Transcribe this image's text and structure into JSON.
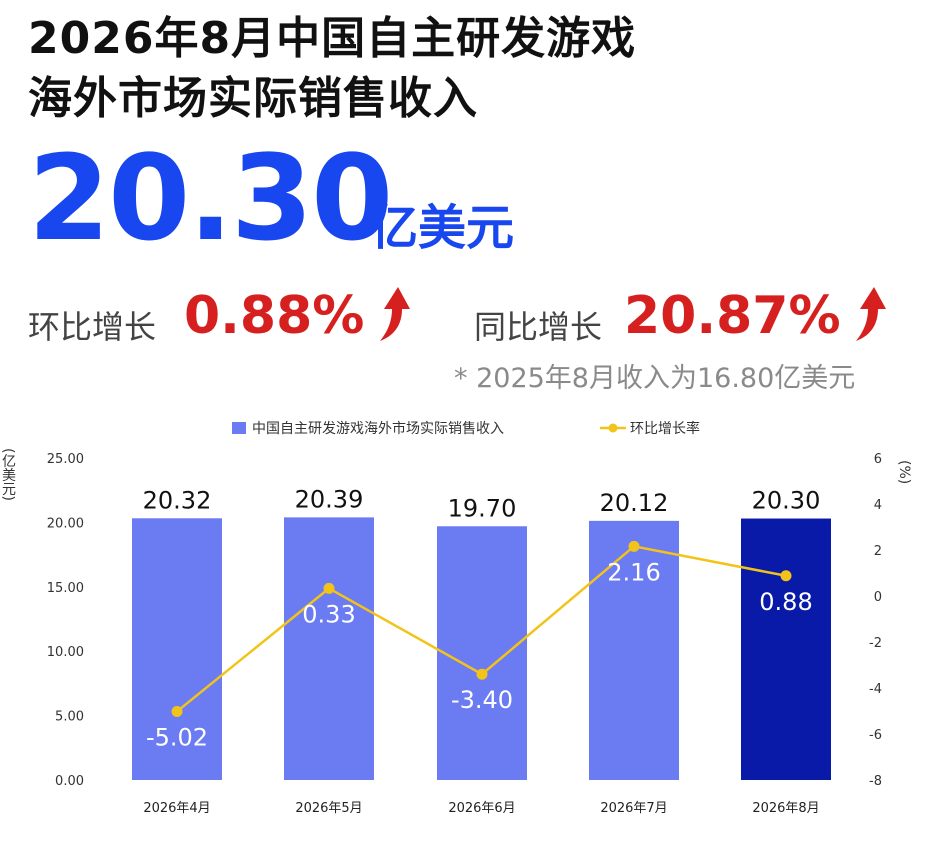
{
  "header": {
    "title_line1": "2026年8月中国自主研发游戏",
    "title_line2": "海外市场实际销售收入",
    "value": "20.30",
    "unit": "亿美元"
  },
  "stats": {
    "mom_label": "环比增长",
    "mom_value": "0.88%",
    "yoy_label": "同比增长",
    "yoy_value": "20.87%",
    "note": "* 2025年8月收入为16.80亿美元"
  },
  "colors": {
    "bar": "#6b7bf2",
    "bar_highlight": "#0a1aa8",
    "line": "#f2c318",
    "accent_blue": "#1846ef",
    "accent_red": "#d62020"
  },
  "chart_data": {
    "type": "bar",
    "categories": [
      "2026年4月",
      "2026年5月",
      "2026年6月",
      "2026年7月",
      "2026年8月"
    ],
    "series": [
      {
        "name": "中国自主研发游戏海外市场实际销售收入",
        "type": "bar",
        "axis": "left",
        "values": [
          20.32,
          20.39,
          19.7,
          20.12,
          20.3
        ],
        "labels": [
          "20.32",
          "20.39",
          "19.70",
          "20.12",
          "20.30"
        ]
      },
      {
        "name": "环比增长率",
        "type": "line",
        "axis": "right",
        "values": [
          -5.02,
          0.33,
          -3.4,
          2.16,
          0.88
        ],
        "labels": [
          "-5.02",
          "0.33",
          "-3.40",
          "2.16",
          "0.88"
        ]
      }
    ],
    "y_left": {
      "label": "(亿美元)",
      "range": [
        0,
        25
      ],
      "ticks": [
        "0.00",
        "5.00",
        "10.00",
        "15.00",
        "20.00",
        "25.00"
      ]
    },
    "y_right": {
      "label": "(%)",
      "range": [
        -8,
        6
      ],
      "ticks": [
        "-8",
        "-6",
        "-4",
        "-2",
        "0",
        "2",
        "4",
        "6"
      ]
    },
    "legend_position": "top-center",
    "grid": false
  }
}
